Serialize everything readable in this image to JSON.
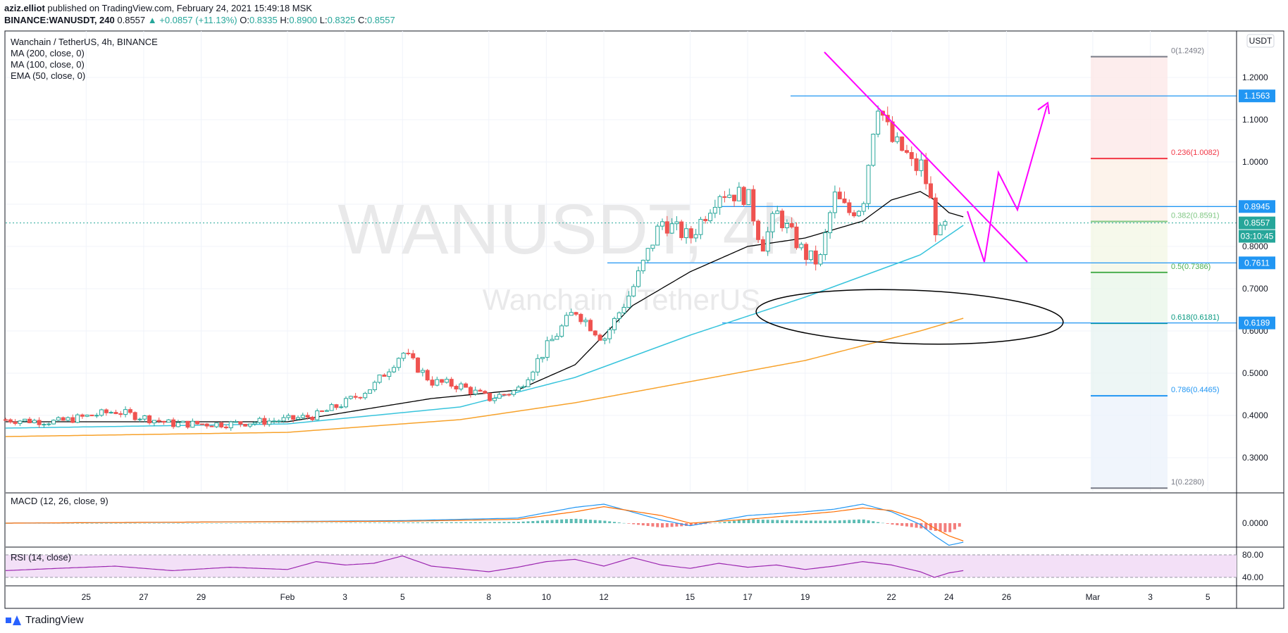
{
  "header": {
    "author": "aziz.elliot",
    "published_text": "published on TradingView.com, February 24, 2021 15:49:18 MSK",
    "symbol": "BINANCE:WANUSDT, 240",
    "last": "0.8557",
    "change": "▲ +0.0857 (+11.13%)",
    "o_label": "O:",
    "o": "0.8335",
    "h_label": "H:",
    "h": "0.8900",
    "l_label": "L:",
    "l": "0.8325",
    "c_label": "C:",
    "c": "0.8557"
  },
  "legend": {
    "title": "Wanchain / TetherUS, 4h, BINANCE",
    "indicators": [
      "MA (200, close, 0)",
      "MA (100, close, 0)",
      "EMA (50, close, 0)"
    ]
  },
  "watermark": {
    "ticker": "WANUSDT, 4h",
    "name": "Wanchain / TetherUS"
  },
  "currency_badge": "USDT",
  "footer": {
    "brand": "TradingView"
  },
  "colors": {
    "up": "#26a69a",
    "down": "#ef5350",
    "ema50": "#000000",
    "ma100": "#38c4dc",
    "ma200": "#f7a22b",
    "trend": "#ff00ff",
    "hline": "#2196f3",
    "ellipse": "#000000",
    "macd_line": "#2196f3",
    "signal_line": "#ff6d00",
    "rsi_line": "#9c27b0",
    "rsi_band": "#f3e0f7"
  },
  "chart_data": {
    "type": "candlestick",
    "title": "Wanchain / TetherUS, 4h, BINANCE",
    "ylim": [
      0.22,
      1.31
    ],
    "y_ticks": [
      "1.2000",
      "1.1000",
      "1.0000",
      "0.9000",
      "0.8000",
      "0.7000",
      "0.6000",
      "0.5000",
      "0.4000",
      "0.3000"
    ],
    "y_tick_values": [
      1.2,
      1.1,
      1.0,
      0.9,
      0.8,
      0.7,
      0.6,
      0.5,
      0.4,
      0.3
    ],
    "x_ticks": [
      "25",
      "27",
      "29",
      "Feb",
      "3",
      "5",
      "8",
      "10",
      "12",
      "15",
      "17",
      "19",
      "22",
      "24",
      "26",
      "Mar",
      "3",
      "5"
    ],
    "x_tick_days": [
      1,
      3,
      5,
      8,
      10,
      12,
      15,
      17,
      19,
      22,
      24,
      26,
      29,
      31,
      33,
      36,
      38,
      40
    ],
    "x_range_days": [
      -1.8,
      41
    ],
    "price_path_days": [
      -1.8,
      0,
      2,
      4,
      6,
      8,
      9,
      10,
      11,
      12,
      13,
      14,
      15,
      16,
      17,
      18,
      19,
      20,
      21,
      22,
      23,
      24,
      24.5,
      25,
      26,
      26.5,
      27,
      27.5,
      28,
      28.5,
      29,
      29.5,
      29.8,
      30,
      30.3,
      30.6,
      31
    ],
    "price_path_close": [
      0.39,
      0.385,
      0.41,
      0.38,
      0.38,
      0.39,
      0.4,
      0.43,
      0.47,
      0.55,
      0.48,
      0.47,
      0.44,
      0.46,
      0.56,
      0.65,
      0.58,
      0.7,
      0.86,
      0.82,
      0.93,
      0.92,
      0.8,
      0.88,
      0.78,
      0.76,
      0.92,
      0.88,
      0.9,
      1.15,
      1.05,
      1.02,
      0.98,
      1.0,
      0.93,
      0.82,
      0.86
    ],
    "ema50_days": [
      -1.8,
      8,
      13,
      16,
      18,
      20,
      22,
      24,
      26,
      28,
      29,
      30,
      30.5,
      31,
      31.5
    ],
    "ema50": [
      0.385,
      0.385,
      0.44,
      0.46,
      0.52,
      0.66,
      0.74,
      0.8,
      0.82,
      0.86,
      0.91,
      0.93,
      0.91,
      0.88,
      0.87
    ],
    "ma100_days": [
      -1.8,
      8,
      14,
      18,
      22,
      26,
      30,
      31.5
    ],
    "ma100": [
      0.37,
      0.38,
      0.42,
      0.49,
      0.59,
      0.68,
      0.78,
      0.85
    ],
    "ma200_days": [
      -1.8,
      8,
      14,
      18,
      22,
      26,
      30,
      31.5
    ],
    "ma200": [
      0.35,
      0.36,
      0.39,
      0.43,
      0.48,
      0.53,
      0.6,
      0.63
    ],
    "horizontal_levels": [
      "1.1563",
      "0.8945",
      "0.8557",
      "0.7611",
      "0.6189"
    ],
    "horizontal_level_values": [
      1.1563,
      0.8945,
      0.8557,
      0.7611,
      0.6189
    ],
    "countdown": "03:10:45",
    "fibonacci": [
      {
        "label": "0(1.2492)",
        "value": 1.2492,
        "color": "#787b86"
      },
      {
        "label": "0.236(1.0082)",
        "value": 1.0082,
        "color": "#f23645"
      },
      {
        "label": "0.382(0.8591)",
        "value": 0.8591,
        "color": "#81c784"
      },
      {
        "label": "0.5(0.7386)",
        "value": 0.7386,
        "color": "#4caf50"
      },
      {
        "label": "0.618(0.6181)",
        "value": 0.6181,
        "color": "#089981"
      },
      {
        "label": "0.786(0.4465)",
        "value": 0.4465,
        "color": "#2196f3"
      },
      {
        "label": "1(0.2280)",
        "value": 0.228,
        "color": "#787b86"
      }
    ],
    "macd": {
      "title": "MACD (12, 26, close, 9)",
      "zero_label": "0.0000",
      "days": [
        -1.8,
        6,
        12,
        16,
        18,
        19,
        21,
        22,
        24,
        26,
        27,
        28,
        29,
        30,
        30.5,
        31,
        31.5
      ],
      "macd": [
        0,
        0.002,
        0.004,
        0.008,
        0.025,
        0.03,
        0.005,
        -0.004,
        0.012,
        0.018,
        0.022,
        0.03,
        0.018,
        -0.002,
        -0.02,
        -0.035,
        -0.03
      ],
      "signal": [
        0,
        0.002,
        0.003,
        0.006,
        0.018,
        0.026,
        0.012,
        0.0,
        0.006,
        0.014,
        0.018,
        0.024,
        0.02,
        0.006,
        -0.008,
        -0.02,
        -0.028
      ]
    },
    "rsi": {
      "title": "RSI (14, close)",
      "levels": [
        "80.00",
        "40.00"
      ],
      "level_values": [
        80,
        40
      ],
      "days": [
        -1.8,
        0,
        2,
        4,
        6,
        8,
        9,
        10,
        11,
        12,
        13,
        14,
        15,
        16,
        17,
        18,
        19,
        20,
        21,
        22,
        23,
        24,
        25,
        26,
        27,
        28,
        29,
        30,
        30.5,
        31,
        31.5
      ],
      "values": [
        52,
        56,
        60,
        52,
        58,
        54,
        68,
        62,
        65,
        78,
        60,
        55,
        50,
        58,
        68,
        72,
        60,
        75,
        62,
        56,
        65,
        58,
        62,
        54,
        60,
        68,
        62,
        50,
        40,
        48,
        52
      ]
    }
  }
}
